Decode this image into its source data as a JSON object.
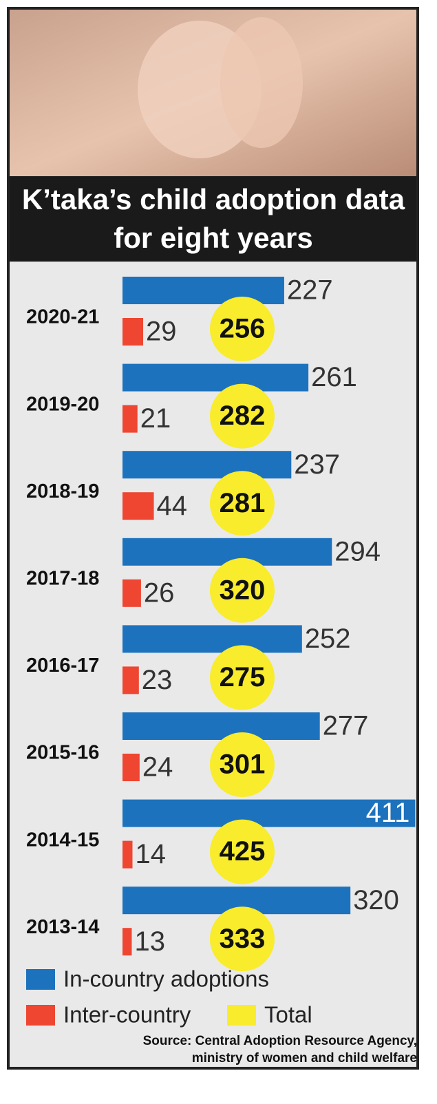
{
  "chart_data": {
    "type": "bar",
    "title": "K’taka’s child adoption data for eight years",
    "categories": [
      "2020-21",
      "2019-20",
      "2018-19",
      "2017-18",
      "2016-17",
      "2015-16",
      "2014-15",
      "2013-14"
    ],
    "series": [
      {
        "name": "In-country adoptions",
        "color": "#1d72bd",
        "values": [
          227,
          261,
          237,
          294,
          252,
          277,
          411,
          320
        ]
      },
      {
        "name": "Inter-country",
        "color": "#ee4631",
        "values": [
          29,
          21,
          44,
          26,
          23,
          24,
          14,
          13
        ]
      },
      {
        "name": "Total",
        "color": "#f8ec2c",
        "values": [
          256,
          282,
          281,
          320,
          275,
          301,
          425,
          333
        ]
      }
    ],
    "source": "Source: Central Adoption Resource Agency, ministry of women and child welfare"
  }
}
